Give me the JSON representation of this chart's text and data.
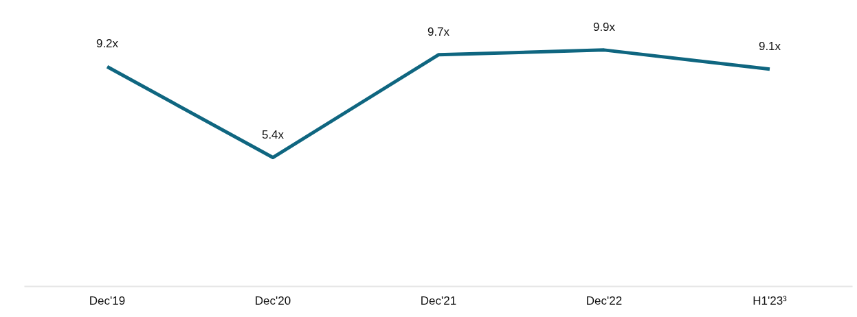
{
  "chart_data": {
    "type": "line",
    "categories": [
      "Dec'19",
      "Dec'20",
      "Dec'21",
      "Dec'22",
      "H1'23³"
    ],
    "series": [
      {
        "color": "#0f6680",
        "values": [
          9.2,
          5.4,
          9.7,
          9.9,
          9.1
        ],
        "value_labels": [
          "9.2x",
          "5.4x",
          "9.7x",
          "9.9x",
          "9.1x"
        ]
      }
    ],
    "tick_labels": "x",
    "grid": false,
    "marker": "none",
    "line_style": "solid"
  }
}
